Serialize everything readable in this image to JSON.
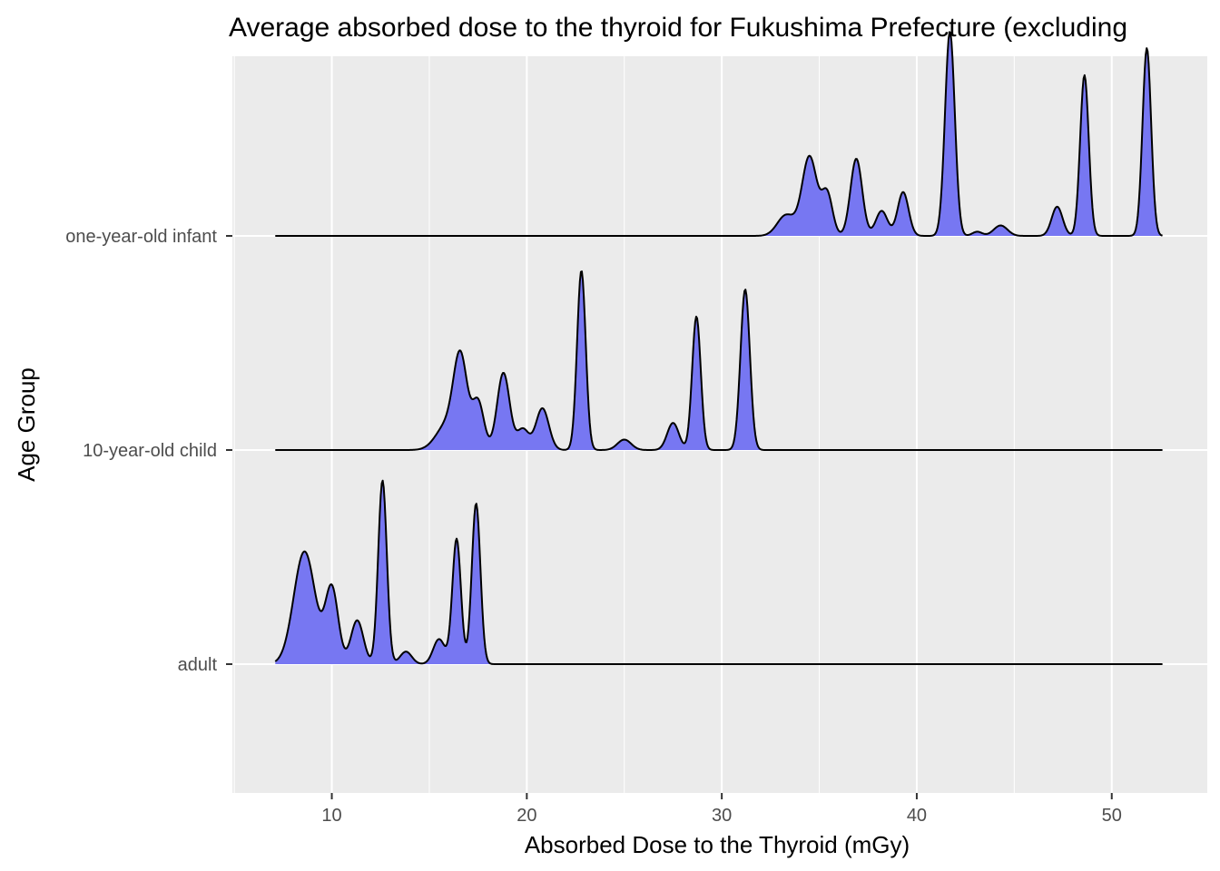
{
  "chart_data": {
    "type": "area",
    "subtype": "ridgeline",
    "title": "Average absorbed dose to the thyroid for Fukushima Prefecture (excluding",
    "xlabel": "Absorbed Dose to the Thyroid (mGy)",
    "ylabel": "Age Group",
    "xlim": [
      4.9,
      54.9
    ],
    "x_ticks": [
      10,
      20,
      30,
      40,
      50
    ],
    "x_tick_labels": [
      "10",
      "20",
      "30",
      "40",
      "50"
    ],
    "x_range": [
      7.1,
      52.6
    ],
    "categories": [
      "adult",
      "10-year-old child",
      "one-year-old infant"
    ],
    "category_order": "bottom-to-top",
    "ridge_scale": 1.45,
    "grid": true,
    "fill_color": "#7777F2",
    "line_color": "#000000",
    "panel_background": "#EBEBEB",
    "grid_color": "#FFFFFF",
    "series": [
      {
        "category": "adult",
        "peaks": [
          {
            "x": 8.6,
            "h": 0.54,
            "sd": 0.55
          },
          {
            "x": 10.0,
            "h": 0.36,
            "sd": 0.33
          },
          {
            "x": 11.3,
            "h": 0.21,
            "sd": 0.32
          },
          {
            "x": 12.6,
            "h": 0.88,
            "sd": 0.22
          },
          {
            "x": 13.8,
            "h": 0.06,
            "sd": 0.3
          },
          {
            "x": 15.5,
            "h": 0.12,
            "sd": 0.3
          },
          {
            "x": 16.4,
            "h": 0.6,
            "sd": 0.22
          },
          {
            "x": 17.4,
            "h": 0.77,
            "sd": 0.22
          }
        ]
      },
      {
        "category": "10-year-old child",
        "peaks": [
          {
            "x": 15.9,
            "h": 0.12,
            "sd": 0.55
          },
          {
            "x": 16.6,
            "h": 0.42,
            "sd": 0.35
          },
          {
            "x": 17.5,
            "h": 0.23,
            "sd": 0.3
          },
          {
            "x": 18.8,
            "h": 0.37,
            "sd": 0.32
          },
          {
            "x": 19.8,
            "h": 0.1,
            "sd": 0.3
          },
          {
            "x": 20.8,
            "h": 0.2,
            "sd": 0.33
          },
          {
            "x": 22.8,
            "h": 0.86,
            "sd": 0.22
          },
          {
            "x": 25.0,
            "h": 0.05,
            "sd": 0.35
          },
          {
            "x": 27.5,
            "h": 0.13,
            "sd": 0.3
          },
          {
            "x": 28.7,
            "h": 0.64,
            "sd": 0.22
          },
          {
            "x": 31.2,
            "h": 0.77,
            "sd": 0.24
          }
        ]
      },
      {
        "category": "one-year-old infant",
        "peaks": [
          {
            "x": 33.3,
            "h": 0.1,
            "sd": 0.45
          },
          {
            "x": 34.5,
            "h": 0.38,
            "sd": 0.38
          },
          {
            "x": 35.4,
            "h": 0.2,
            "sd": 0.28
          },
          {
            "x": 36.9,
            "h": 0.37,
            "sd": 0.3
          },
          {
            "x": 38.2,
            "h": 0.12,
            "sd": 0.3
          },
          {
            "x": 39.3,
            "h": 0.21,
            "sd": 0.28
          },
          {
            "x": 41.7,
            "h": 0.98,
            "sd": 0.25
          },
          {
            "x": 43.1,
            "h": 0.02,
            "sd": 0.25
          },
          {
            "x": 44.3,
            "h": 0.05,
            "sd": 0.35
          },
          {
            "x": 47.2,
            "h": 0.14,
            "sd": 0.28
          },
          {
            "x": 48.6,
            "h": 0.77,
            "sd": 0.22
          },
          {
            "x": 51.8,
            "h": 0.9,
            "sd": 0.22
          }
        ]
      }
    ]
  }
}
